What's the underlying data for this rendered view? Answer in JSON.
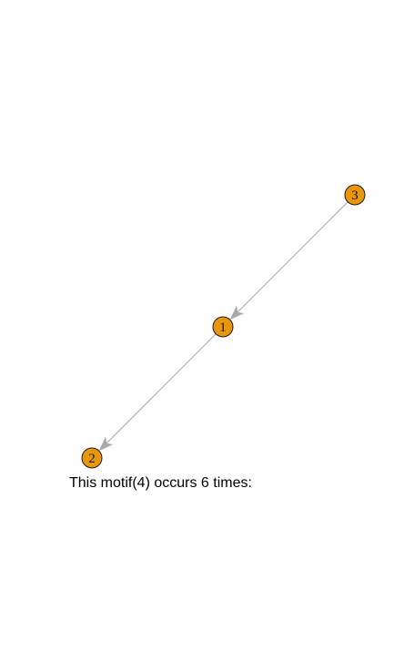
{
  "caption": "This motif(4) occurs 6 times:",
  "colors": {
    "node_fill": "#e8960c",
    "node_border": "#1a1a1a",
    "edge": "#a9a9a9",
    "background": "#ffffff"
  },
  "graph": {
    "nodes": [
      {
        "id": "3",
        "label": "3"
      },
      {
        "id": "1",
        "label": "1"
      },
      {
        "id": "2",
        "label": "2"
      }
    ],
    "edges": [
      {
        "from": "3",
        "to": "1",
        "directed": true
      },
      {
        "from": "1",
        "to": "2",
        "directed": true
      }
    ]
  }
}
